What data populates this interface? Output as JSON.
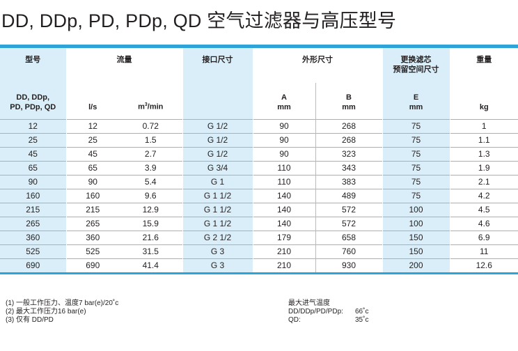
{
  "title": "DD, DDp, PD, PDp, QD 空气过滤器与高压型号",
  "table": {
    "headers_top": {
      "model": "型号",
      "flow": "流量",
      "connection": "接口尺寸",
      "dimensions": "外形尺寸",
      "filter_replacement_line1": "更换滤芯",
      "filter_replacement_line2": "预留空间尺寸",
      "weight": "重量"
    },
    "headers_sub": {
      "model_line1": "DD, DDp,",
      "model_line2": "PD, PDp, QD",
      "flow_ls": "l/s",
      "flow_m3_base": "m",
      "flow_m3_sup": "3",
      "flow_m3_rest": "/min",
      "dim_a": "A",
      "dim_a_unit": "mm",
      "dim_b": "B",
      "dim_b_unit": "mm",
      "dim_e": "E",
      "dim_e_unit": "mm",
      "weight_unit": "kg"
    },
    "rows": [
      [
        "12",
        "12",
        "0.72",
        "G 1/2",
        "90",
        "268",
        "75",
        "1"
      ],
      [
        "25",
        "25",
        "1.5",
        "G 1/2",
        "90",
        "268",
        "75",
        "1.1"
      ],
      [
        "45",
        "45",
        "2.7",
        "G 1/2",
        "90",
        "323",
        "75",
        "1.3"
      ],
      [
        "65",
        "65",
        "3.9",
        "G 3/4",
        "110",
        "343",
        "75",
        "1.9"
      ],
      [
        "90",
        "90",
        "5.4",
        "G 1",
        "110",
        "383",
        "75",
        "2.1"
      ],
      [
        "160",
        "160",
        "9.6",
        "G 1 1/2",
        "140",
        "489",
        "75",
        "4.2"
      ],
      [
        "215",
        "215",
        "12.9",
        "G 1 1/2",
        "140",
        "572",
        "100",
        "4.5"
      ],
      [
        "265",
        "265",
        "15.9",
        "G 1 1/2",
        "140",
        "572",
        "100",
        "4.6"
      ],
      [
        "360",
        "360",
        "21.6",
        "G 2 1/2",
        "179",
        "658",
        "150",
        "6.9"
      ],
      [
        "525",
        "525",
        "31.5",
        "G 3",
        "210",
        "760",
        "150",
        "11"
      ],
      [
        "690",
        "690",
        "41.4",
        "G 3",
        "210",
        "930",
        "200",
        "12.6"
      ]
    ]
  },
  "notes": [
    "(1) 一般工作压力、温度7 bar(e)/20˚c",
    "(2) 最大工作压力16 bar(e)",
    "(3) 仅有 DD/PD"
  ],
  "temps": {
    "title": "最大进气温度",
    "rows": [
      {
        "label": "DD/DDp/PD/PDp:",
        "value": "66˚c"
      },
      {
        "label": "QD:",
        "value": "35˚c"
      }
    ]
  },
  "colors": {
    "accent": "#2ea3d7",
    "shade": "#d9eef8",
    "row_line": "#7cbfe3"
  }
}
